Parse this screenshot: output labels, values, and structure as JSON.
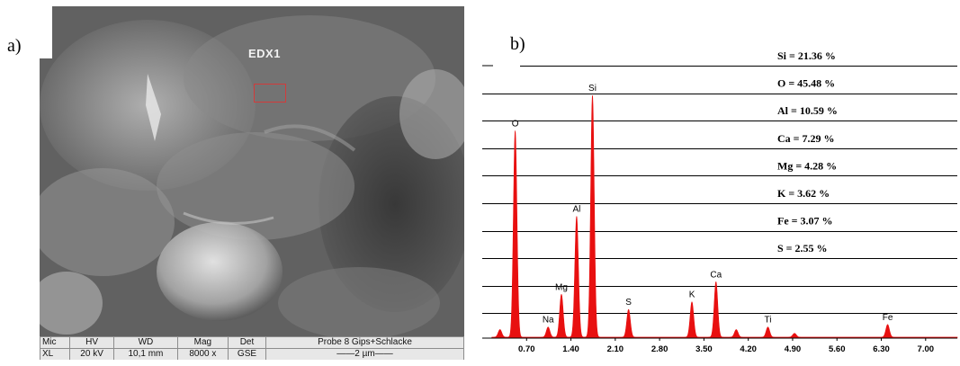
{
  "panel_a_label": "a)",
  "panel_b_label": "b)",
  "sem": {
    "region_label": "EDX1",
    "infobar": {
      "headers": [
        "Mic",
        "HV",
        "WD",
        "Mag",
        "Det"
      ],
      "values": [
        "XL",
        "20 kV",
        "10,1 mm",
        "8000 x",
        "GSE"
      ],
      "sample": "Probe 8 Gips+Schlacke",
      "scalebar": "——2 µm——"
    }
  },
  "colors": {
    "spectrum": "#e81010",
    "scale_box": "#d23b3b"
  },
  "chart_data": {
    "type": "area",
    "xlim": [
      0,
      7.5
    ],
    "ylim": [
      0,
      100
    ],
    "x_ticks": [
      "0.70",
      "1.40",
      "2.10",
      "2.80",
      "3.50",
      "4.20",
      "4.90",
      "5.60",
      "6.30",
      "7.00"
    ],
    "x_tick_values": [
      0.7,
      1.4,
      2.1,
      2.8,
      3.5,
      4.2,
      4.9,
      5.6,
      6.3,
      7.0
    ],
    "peaks": [
      {
        "label": "O",
        "x": 0.52,
        "y": 82
      },
      {
        "label": "Na",
        "x": 1.04,
        "y": 4
      },
      {
        "label": "Mg",
        "x": 1.25,
        "y": 17
      },
      {
        "label": "Al",
        "x": 1.49,
        "y": 48
      },
      {
        "label": "Si",
        "x": 1.74,
        "y": 96
      },
      {
        "label": "S",
        "x": 2.31,
        "y": 11
      },
      {
        "label": "K",
        "x": 3.31,
        "y": 14
      },
      {
        "label": "Ca",
        "x": 3.69,
        "y": 22
      },
      {
        "label": "Ti",
        "x": 4.51,
        "y": 4
      },
      {
        "label": "Fe",
        "x": 6.4,
        "y": 5
      }
    ],
    "minor_peaks": [
      {
        "x": 0.28,
        "y": 3
      },
      {
        "x": 4.01,
        "y": 3
      },
      {
        "x": 4.93,
        "y": 1.5
      }
    ],
    "composition": [
      "Si = 21.36 %",
      "O = 45.48 %",
      "Al = 10.59 %",
      "Ca = 7.29 %",
      "Mg = 4.28 %",
      "K = 3.62 %",
      "Fe = 3.07 %",
      "S = 2.55 %"
    ]
  }
}
